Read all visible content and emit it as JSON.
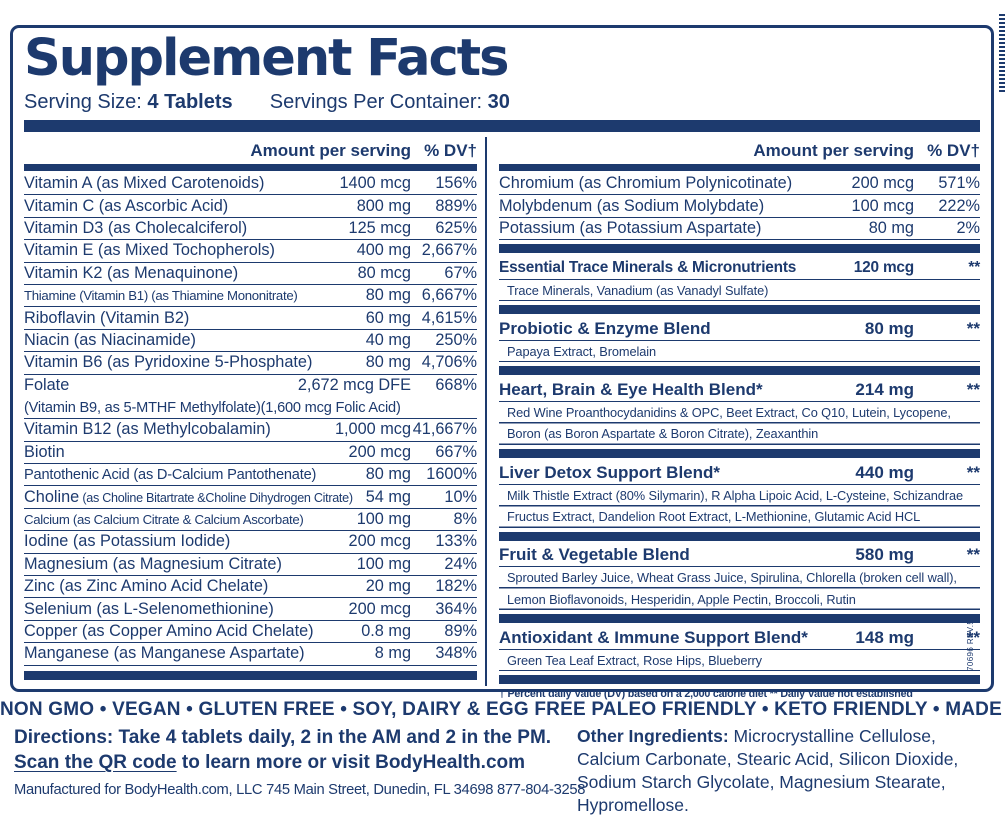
{
  "colors": {
    "navy": "#1d3a6e",
    "background": "#ffffff"
  },
  "label": {
    "title": "Supplement Facts",
    "serving_size_label": "Serving Size:",
    "serving_size_value": "4 Tablets",
    "servings_label": "Servings Per Container:",
    "servings_value": "30",
    "col_header_amount": "Amount per serving",
    "col_header_dv": "% DV†",
    "left_rows": [
      {
        "name": "Vitamin A (as Mixed Carotenoids)",
        "amount": "1400 mcg",
        "dv": "156%"
      },
      {
        "name": "Vitamin C (as Ascorbic Acid)",
        "amount": "800 mg",
        "dv": "889%"
      },
      {
        "name": "Vitamin D3 (as Cholecalciferol)",
        "amount": "125 mcg",
        "dv": "625%"
      },
      {
        "name": "Vitamin E (as Mixed Tochopherols)",
        "amount": "400 mg",
        "dv": "2,667%"
      },
      {
        "name": "Vitamin K2 (as Menaquinone)",
        "amount": "80 mcg",
        "dv": "67%"
      },
      {
        "name": "Thiamine (Vitamin B1) (as Thiamine Mononitrate)",
        "amount": "80 mg",
        "dv": "6,667%"
      },
      {
        "name": "Riboflavin (Vitamin B2)",
        "amount": "60 mg",
        "dv": "4,615%"
      },
      {
        "name": "Niacin (as Niacinamide)",
        "amount": "40 mg",
        "dv": "250%"
      },
      {
        "name": "Vitamin B6 (as Pyridoxine 5-Phosphate)",
        "amount": "80 mg",
        "dv": "4,706%"
      },
      {
        "name": "Folate",
        "amount": "2,672 mcg DFE",
        "dv": "668%",
        "sub": "(Vitamin B9, as 5-MTHF Methylfolate)(1,600 mcg Folic Acid)"
      },
      {
        "name": "Vitamin B12 (as Methylcobalamin)",
        "amount": "1,000 mcg",
        "dv": "41,667%"
      },
      {
        "name": "Biotin",
        "amount": "200 mcg",
        "dv": "667%"
      },
      {
        "name": "Pantothenic Acid (as D-Calcium Pantothenate)",
        "amount": "80 mg",
        "dv": "1600%"
      },
      {
        "name": "Choline",
        "name_small": "(as Choline Bitartrate &Choline Dihydrogen Citrate)",
        "amount": "54 mg",
        "dv": "10%"
      },
      {
        "name": "Calcium (as Calcium Citrate & Calcium Ascorbate)",
        "amount": "100 mg",
        "dv": "8%"
      },
      {
        "name": "Iodine (as Potassium Iodide)",
        "amount": "200 mcg",
        "dv": "133%"
      },
      {
        "name": "Magnesium (as Magnesium Citrate)",
        "amount": "100 mg",
        "dv": "24%"
      },
      {
        "name": "Zinc (as Zinc Amino Acid Chelate)",
        "amount": "20 mg",
        "dv": "182%"
      },
      {
        "name": "Selenium (as L-Selenomethionine)",
        "amount": "200 mcg",
        "dv": "364%"
      },
      {
        "name": "Copper (as Copper Amino Acid Chelate)",
        "amount": "0.8 mg",
        "dv": "89%"
      },
      {
        "name": "Manganese (as Manganese Aspartate)",
        "amount": "8 mg",
        "dv": "348%"
      }
    ],
    "right_rows": [
      {
        "name": "Chromium (as Chromium Polynicotinate)",
        "amount": "200 mcg",
        "dv": "571%"
      },
      {
        "name": "Molybdenum (as Sodium Molybdate)",
        "amount": "100 mcg",
        "dv": "222%"
      },
      {
        "name": "Potassium (as Potassium Aspartate)",
        "amount": "80 mg",
        "dv": "2%"
      }
    ],
    "blends": [
      {
        "name": "Essential Trace Minerals & Micronutrients",
        "amount": "120 mcg",
        "dv": "**",
        "ingredients": "Trace Minerals, Vanadium (as Vanadyl Sulfate)"
      },
      {
        "name": "Probiotic & Enzyme Blend",
        "amount": "80 mg",
        "dv": "**",
        "ingredients": "Papaya Extract, Bromelain"
      },
      {
        "name": "Heart, Brain & Eye Health Blend*",
        "amount": "214 mg",
        "dv": "**",
        "ingredients": "Red Wine Proanthocydanidins & OPC, Beet Extract, Co Q10, Lutein, Lycopene, Boron (as Boron Aspartate & Boron Citrate), Zeaxanthin"
      },
      {
        "name": "Liver Detox Support Blend*",
        "amount": "440 mg",
        "dv": "**",
        "ingredients": "Milk Thistle Extract (80% Silymarin), R Alpha Lipoic Acid, L-Cysteine, Schizandrae Fructus Extract, Dandelion Root Extract, L-Methionine, Glutamic Acid HCL"
      },
      {
        "name": "Fruit & Vegetable Blend",
        "amount": "580 mg",
        "dv": "**",
        "ingredients": "Sprouted Barley Juice, Wheat Grass Juice, Spirulina, Chlorella (broken cell wall), Lemon Bioflavonoids, Hesperidin, Apple Pectin, Broccoli, Rutin"
      },
      {
        "name": "Antioxidant & Immune Support Blend*",
        "amount": "148 mg",
        "dv": "**",
        "ingredients": "Green Tea Leaf Extract, Rose Hips, Blueberry"
      }
    ],
    "footnote": "† Percent daily Value (DV) based on a 2,000 calorie diet ** Daily Value not established",
    "side_code": "70696 REV.5"
  },
  "footer": {
    "badges": "NON GMO • VEGAN • GLUTEN FREE • SOY, DAIRY & EGG FREE PALEO FRIENDLY • KETO FRIENDLY • MADE IN USA",
    "directions_label": "Directions:",
    "directions_text": " Take 4 tablets daily, 2 in the AM and 2 in the PM.",
    "scan_link": "Scan the QR code",
    "scan_rest": " to learn more or visit BodyHealth.com",
    "manufactured": "Manufactured for BodyHealth.com, LLC 745 Main Street, Dunedin, FL 34698 877-804-3258",
    "other_ingredients_label": "Other Ingredients:",
    "other_ingredients_text": " Microcrystalline Cellulose, Calcium Carbonate, Stearic Acid, Silicon Dioxide, Sodium Starch Glycolate, Magnesium Stearate, Hypromellose."
  }
}
